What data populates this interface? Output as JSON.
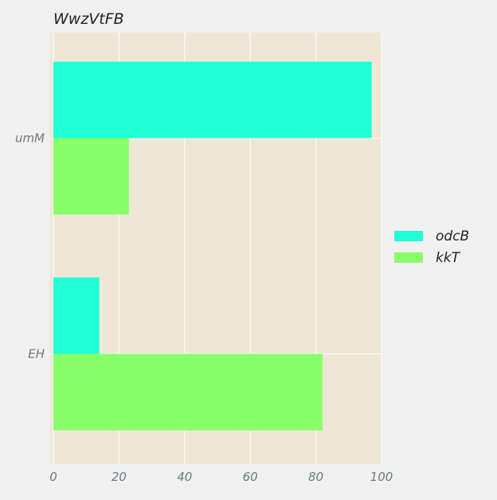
{
  "chart_data": {
    "type": "bar",
    "orientation": "horizontal",
    "title": "WwzVtFB",
    "xlabel": "",
    "ylabel": "",
    "categories": [
      "umM",
      "EH"
    ],
    "series": [
      {
        "name": "odcB",
        "values": [
          97,
          14
        ]
      },
      {
        "name": "kkT",
        "values": [
          23,
          82
        ]
      }
    ],
    "xlim": [
      0,
      100
    ],
    "xticks": [
      "0",
      "20",
      "40",
      "60",
      "80",
      "100"
    ],
    "grid": true,
    "legend_position": "right",
    "colors": {
      "odcB": "#22ffd5",
      "kkT": "#88ff6a",
      "plot_background": "#efe7d6",
      "page_background": "#f0f0f0",
      "grid": "#ffffff"
    }
  }
}
